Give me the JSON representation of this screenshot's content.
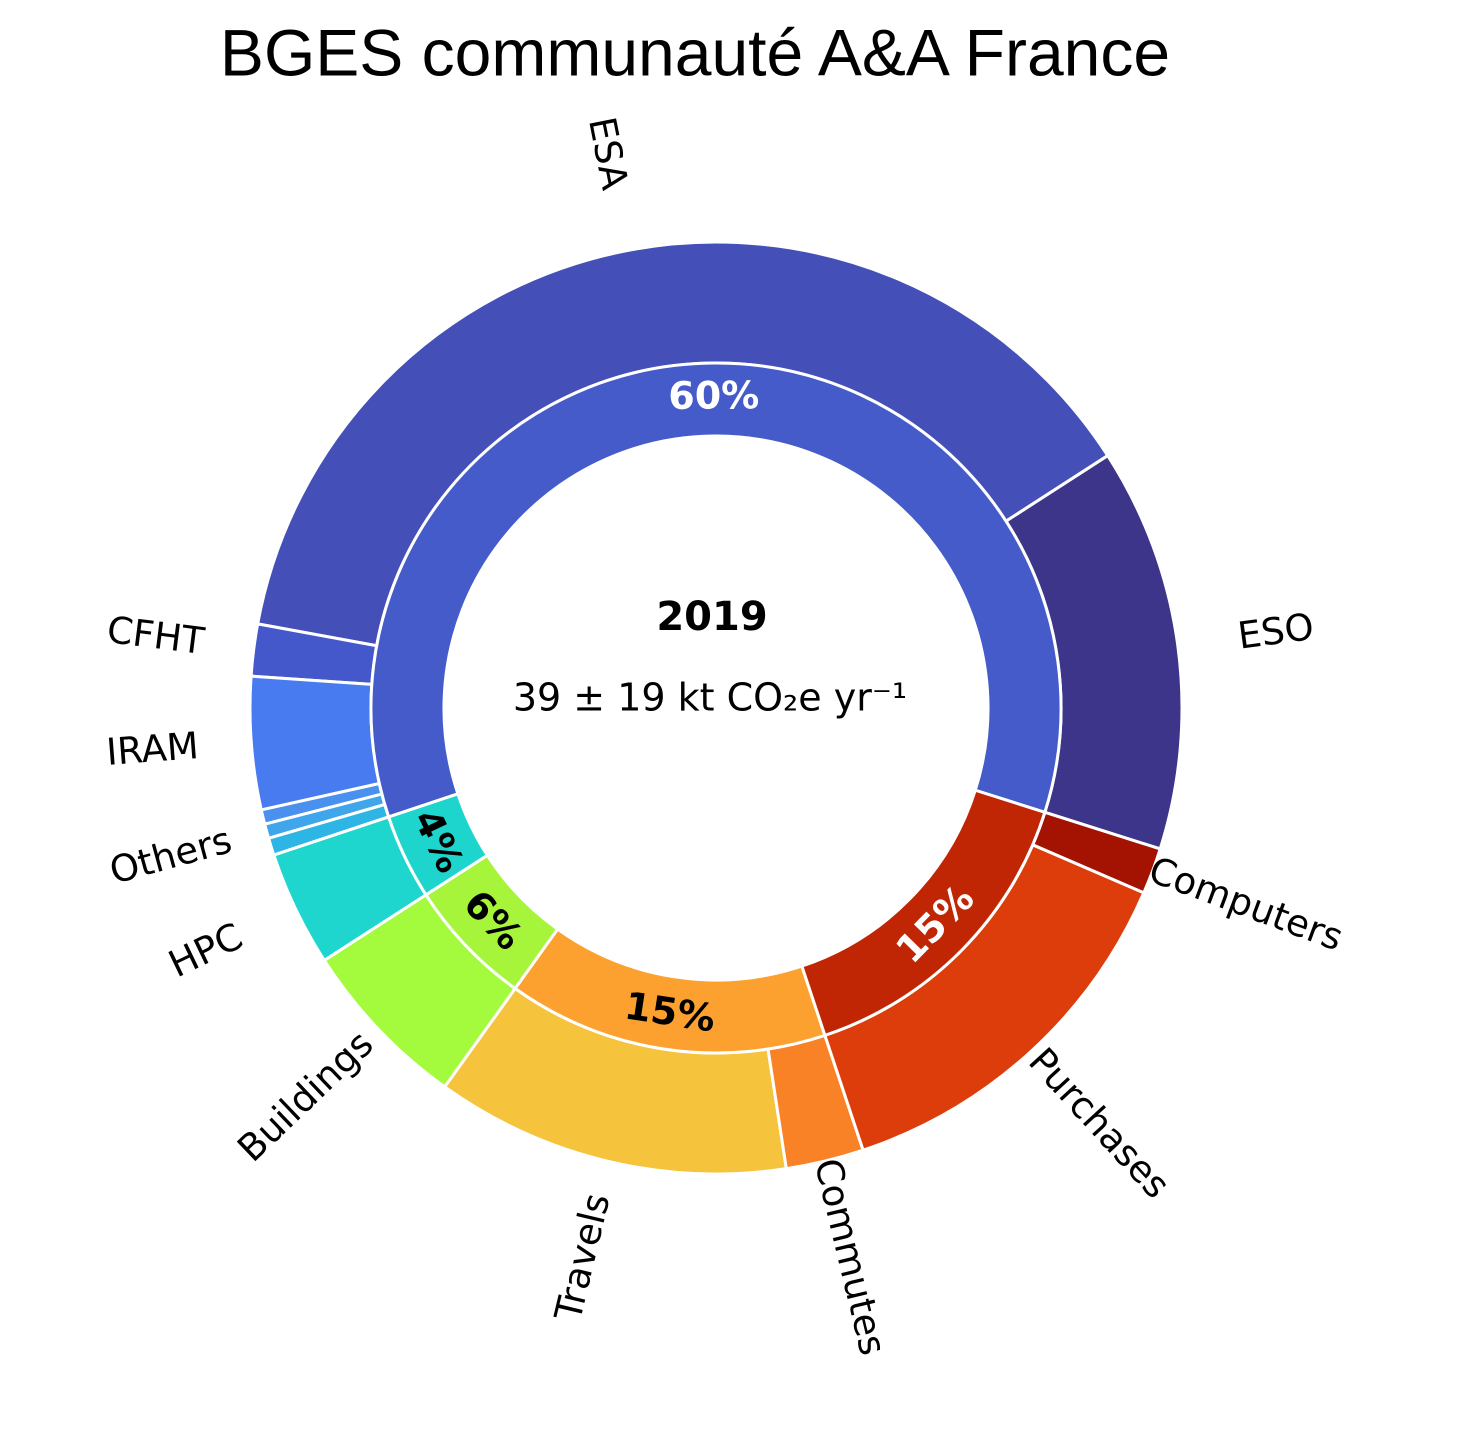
{
  "chart_data": {
    "type": "nested-donut",
    "title": "BGES communauté A&A France",
    "center_title": "2019",
    "center_subtitle": "39 ± 19 kt CO₂e yr⁻¹",
    "start_angle": -17.6,
    "inner": {
      "values": [
        60,
        4,
        6,
        15,
        15
      ],
      "value_labels": [
        "60%",
        "4%",
        "6%",
        "15%",
        "15%"
      ],
      "colors": [
        "#445bc9",
        "#1dd5cc",
        "#a7f53a",
        "#fca12f",
        "#c02504"
      ],
      "label_colors": [
        "#ffffff",
        "#000000",
        "#000000",
        "#000000",
        "#ffffff"
      ]
    },
    "outer": {
      "categories": [
        "ESO",
        "ESA",
        "CFHT",
        "IRAM",
        null,
        "Others",
        null,
        "HPC",
        "Buildings",
        "Travels",
        "Commutes",
        "Purchases",
        "Computers"
      ],
      "values": [
        14,
        38,
        1.8,
        4.6,
        0.5,
        0.5,
        0.6,
        4,
        6,
        12.3,
        2.7,
        13.4,
        1.6
      ],
      "colors": [
        "#3d3589",
        "#454fb8",
        "#4458cc",
        "#487af0",
        "#4a90ee",
        "#3fa6ec",
        "#2db5e6",
        "#1fd6cf",
        "#a4fa3c",
        "#f6c33c",
        "#f98126",
        "#dc3d0b",
        "#a41302"
      ]
    }
  }
}
